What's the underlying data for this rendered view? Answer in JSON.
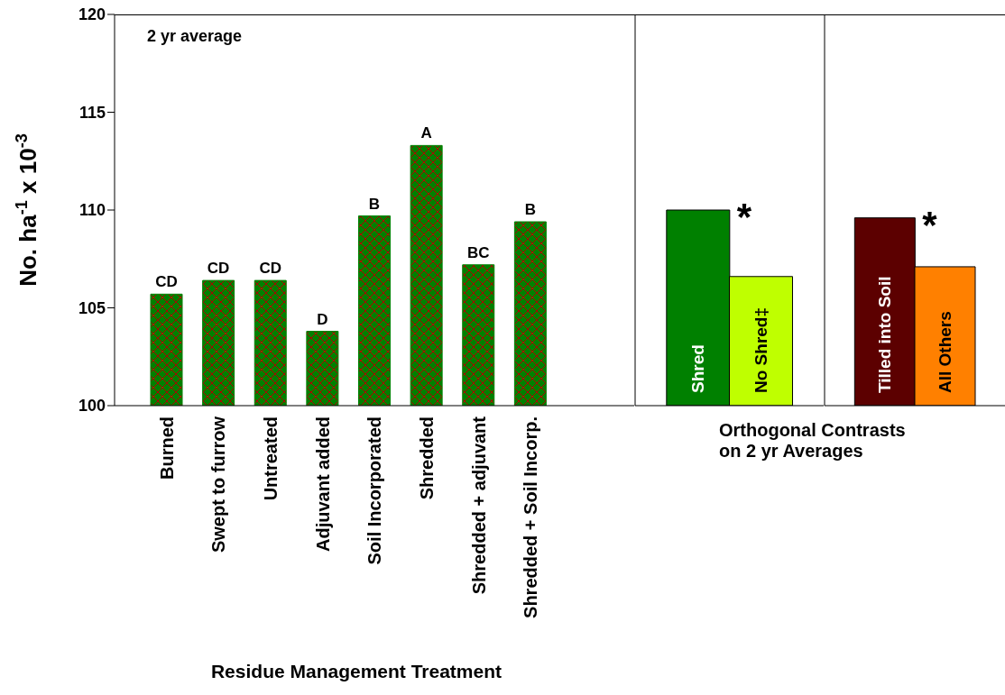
{
  "chart_data": [
    {
      "type": "bar",
      "ylabel": "No. ha$^{-1}$ x 10$^{-3}$",
      "xlabel": "Residue Management Treatment",
      "categories": [
        "Burned",
        "Swept to furrow",
        "Untreated",
        "Adjuvant added",
        "Soil Incorporated",
        "Shredded",
        "Shredded + adjuvant",
        "Shredded + Soil Incorp."
      ],
      "values": [
        105.7,
        106.4,
        106.4,
        103.8,
        109.7,
        113.3,
        107.2,
        109.4
      ],
      "color": "#008000",
      "value_labels": [
        "CD",
        "CD",
        "CD",
        "D",
        "B",
        "A",
        "BC",
        "B"
      ],
      "ylim": [
        100,
        120
      ],
      "yticks": [
        100,
        105,
        110,
        115,
        120
      ],
      "annotations": [
        "2 yr average"
      ]
    },
    {
      "type": "bar",
      "xlabel": "Orthogonal Contrasts on 2 yr Averages",
      "categories": [
        "Shred",
        "No Shred‡"
      ],
      "values": [
        110.0,
        106.6
      ],
      "colors": [
        "#008000",
        "#bfff00"
      ],
      "ylim": [
        100,
        120
      ],
      "yticks": [
        100,
        105,
        110,
        115,
        120
      ],
      "tick_labels": "x",
      "annotations": [
        "*"
      ]
    },
    {
      "type": "bar",
      "categories": [
        "Tilled into Soil",
        "All Others"
      ],
      "values": [
        109.6,
        107.1
      ],
      "colors": [
        "#5c0000",
        "#ff8000"
      ],
      "ylim": [
        100,
        120
      ],
      "yticks": [
        100,
        105,
        110,
        115,
        120
      ],
      "tick_labels": "x",
      "annotations": [
        "*"
      ]
    }
  ]
}
